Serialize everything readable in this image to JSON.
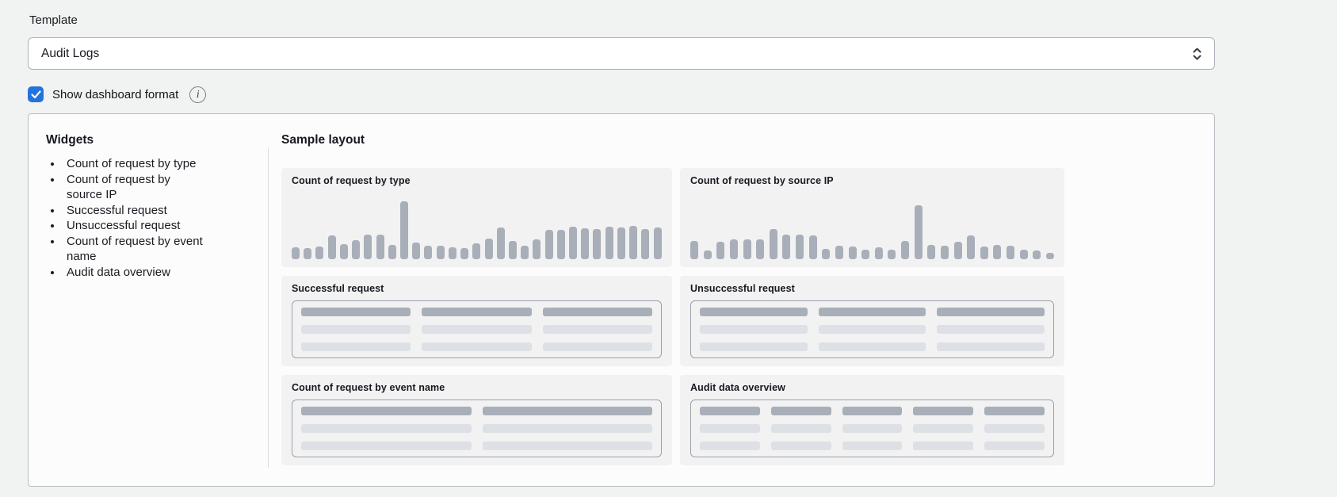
{
  "template_field": {
    "label": "Template",
    "value": "Audit Logs"
  },
  "format_toggle": {
    "label": "Show dashboard format",
    "checked": true,
    "checkbox_color": "#2273dd",
    "info_icon": "i"
  },
  "panel": {
    "widgets": {
      "heading": "Widgets",
      "items": [
        "Count of request by type",
        "Count of request by source IP",
        "Successful request",
        "Unsuccessful request",
        "Count of request by event name",
        "Audit data overview"
      ]
    },
    "sample_layout": {
      "heading": "Sample layout",
      "colors": {
        "card_bg": "#f2f2f3",
        "bar": "#a9afb9",
        "skeleton_light": "#dde0e4",
        "table_border": "#9aa0a8"
      },
      "cards": [
        {
          "title": "Count of request by type",
          "kind": "chart",
          "chart_index": 0
        },
        {
          "title": "Count of request by source IP",
          "kind": "chart",
          "chart_index": 1
        },
        {
          "title": "Successful request",
          "kind": "table",
          "columns": 3,
          "rows": 3
        },
        {
          "title": "Unsuccessful request",
          "kind": "table",
          "columns": 3,
          "rows": 3
        },
        {
          "title": "Count of request by event name",
          "kind": "table",
          "columns": 2,
          "rows": 3
        },
        {
          "title": "Audit data overview",
          "kind": "table",
          "columns": 5,
          "rows": 3
        }
      ]
    }
  },
  "chart_data": [
    {
      "type": "bar",
      "title": "Count of request by type",
      "note": "decorative preview sparkline, no axes or tick labels shown; values are relative bar heights in px",
      "values": [
        15,
        14,
        16,
        30,
        19,
        24,
        31,
        31,
        18,
        73,
        21,
        17,
        17,
        15,
        14,
        20,
        26,
        40,
        23,
        17,
        25,
        37,
        37,
        41,
        39,
        38,
        41,
        40,
        42,
        38,
        40
      ],
      "xlabel": "",
      "ylabel": "",
      "grid": false,
      "legend": false,
      "bar_color": "#a9afb9"
    },
    {
      "type": "bar",
      "title": "Count of request by source IP",
      "note": "decorative preview sparkline, no axes or tick labels shown; values are relative bar heights in px",
      "values": [
        23,
        11,
        22,
        25,
        25,
        25,
        38,
        31,
        31,
        30,
        13,
        17,
        16,
        12,
        15,
        12,
        23,
        68,
        18,
        17,
        22,
        30,
        16,
        18,
        17,
        12,
        11,
        8
      ],
      "xlabel": "",
      "ylabel": "",
      "grid": false,
      "legend": false,
      "bar_color": "#a9afb9"
    }
  ]
}
